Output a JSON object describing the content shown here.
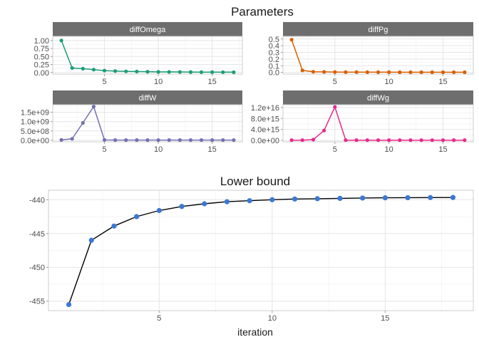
{
  "chart_data": [
    {
      "type": "line",
      "panel": "diffOmega",
      "group_title": "Parameters",
      "x": [
        1,
        2,
        3,
        4,
        5,
        6,
        7,
        8,
        9,
        10,
        11,
        12,
        13,
        14,
        15,
        16,
        17
      ],
      "y": [
        1.0,
        0.14,
        0.12,
        0.09,
        0.06,
        0.045,
        0.035,
        0.03,
        0.025,
        0.02,
        0.018,
        0.016,
        0.014,
        0.012,
        0.011,
        0.01,
        0.009
      ],
      "color": "#1b9e77",
      "xticks": [
        5,
        10,
        15
      ],
      "yticks": [
        0,
        0.25,
        0.5,
        0.75,
        1.0
      ],
      "ytick_labels": [
        "0.00",
        "0.25",
        "0.50",
        "0.75",
        "1.00"
      ],
      "ylim": [
        -0.05,
        1.13
      ],
      "xlim": [
        0.2,
        17.8
      ]
    },
    {
      "type": "line",
      "panel": "diffPg",
      "group_title": "Parameters",
      "x": [
        1,
        2,
        3,
        4,
        5,
        6,
        7,
        8,
        9,
        10,
        11,
        12,
        13,
        14,
        15,
        16,
        17
      ],
      "y": [
        0.49,
        0.03,
        0.01,
        0.008,
        0.006,
        0.005,
        0.005,
        0.004,
        0.004,
        0.004,
        0.003,
        0.003,
        0.003,
        0.003,
        0.003,
        0.003,
        0.003
      ],
      "color": "#d95f02",
      "xticks": [
        5,
        10,
        15
      ],
      "yticks": [
        0,
        0.1,
        0.2,
        0.3,
        0.4,
        0.5
      ],
      "ytick_labels": [
        "0.0",
        "0.1",
        "0.2",
        "0.3",
        "0.4",
        "0.5"
      ],
      "ylim": [
        -0.025,
        0.54
      ],
      "xlim": [
        0.2,
        17.8
      ]
    },
    {
      "type": "line",
      "panel": "diffW",
      "group_title": "Parameters",
      "x": [
        1,
        2,
        3,
        4,
        5,
        6,
        7,
        8,
        9,
        10,
        11,
        12,
        13,
        14,
        15,
        16,
        17
      ],
      "y": [
        20000000.0,
        80000000.0,
        930000000.0,
        1800000000.0,
        20000000.0,
        10000000.0,
        10000000.0,
        10000000.0,
        10000000.0,
        10000000.0,
        10000000.0,
        10000000.0,
        10000000.0,
        10000000.0,
        10000000.0,
        10000000.0,
        10000000.0
      ],
      "color": "#7570b3",
      "xticks": [
        5,
        10,
        15
      ],
      "yticks": [
        0,
        500000000.0,
        1000000000.0,
        1500000000.0
      ],
      "ytick_labels": [
        "0.0e+00",
        "5.0e+08",
        "1.0e+09",
        "1.5e+09"
      ],
      "ylim": [
        -80000000.0,
        1900000000.0
      ],
      "xlim": [
        0.2,
        17.8
      ]
    },
    {
      "type": "line",
      "panel": "diffWg",
      "group_title": "Parameters",
      "x": [
        1,
        2,
        3,
        4,
        5,
        6,
        7,
        8,
        9,
        10,
        11,
        12,
        13,
        14,
        15,
        16,
        17
      ],
      "y": [
        100000000000000.0,
        100000000000000.0,
        300000000000000.0,
        3600000000000000.0,
        1.22e+16,
        100000000000000.0,
        100000000000000.0,
        100000000000000.0,
        100000000000000.0,
        100000000000000.0,
        100000000000000.0,
        100000000000000.0,
        100000000000000.0,
        100000000000000.0,
        100000000000000.0,
        100000000000000.0,
        100000000000000.0
      ],
      "color": "#e7298a",
      "xticks": [
        5,
        10,
        15
      ],
      "yticks": [
        0,
        4000000000000000.0,
        8000000000000000.0,
        1.2e+16
      ],
      "ytick_labels": [
        "0.0e+00",
        "4.0e+15",
        "8.0e+15",
        "1.2e+16"
      ],
      "ylim": [
        -500000000000000.0,
        1.3e+16
      ],
      "xlim": [
        0.2,
        17.8
      ]
    },
    {
      "type": "line",
      "title": "Lower bound",
      "xlabel": "iteration",
      "x": [
        1,
        2,
        3,
        4,
        5,
        6,
        7,
        8,
        9,
        10,
        11,
        12,
        13,
        14,
        15,
        16,
        17,
        18
      ],
      "y": [
        -455.5,
        -446.0,
        -443.9,
        -442.5,
        -441.6,
        -441.0,
        -440.6,
        -440.3,
        -440.15,
        -440.0,
        -439.9,
        -439.85,
        -439.8,
        -439.75,
        -439.72,
        -439.7,
        -439.68,
        -439.67
      ],
      "line_color": "#000000",
      "point_color": "#3a78d4",
      "xticks": [
        5,
        10,
        15
      ],
      "yticks": [
        -455,
        -450,
        -445,
        -440
      ],
      "ytick_labels": [
        "-455",
        "-450",
        "-445",
        "-440"
      ],
      "ylim": [
        -456.4,
        -438.6
      ],
      "xlim": [
        0.1,
        18.9
      ]
    }
  ],
  "texts": {
    "top_title": "Parameters",
    "bottom_title": "Lower bound",
    "bottom_xlabel": "iteration",
    "panel_1": "diffOmega",
    "panel_2": "diffPg",
    "panel_3": "diffW",
    "panel_4": "diffWg"
  }
}
